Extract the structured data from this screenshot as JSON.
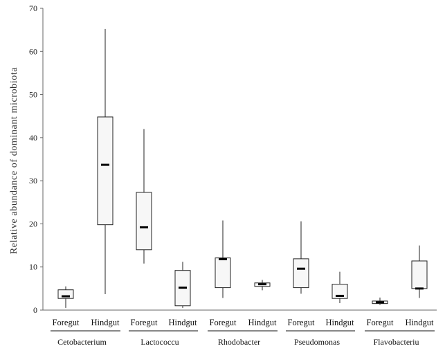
{
  "chart_data": {
    "type": "box",
    "ylabel": "Relative abundance of dominant microbiota",
    "xlabel": "",
    "ylim": [
      0,
      70
    ],
    "yticks": [
      0,
      10,
      20,
      30,
      40,
      50,
      60,
      70
    ],
    "grid": false,
    "groups": [
      {
        "name": "Cetobacterium",
        "boxes": [
          {
            "category": "Foregut",
            "min": 0.5,
            "q1": 2.7,
            "median": 3.2,
            "q3": 4.7,
            "max": 5.5
          },
          {
            "category": "Hindgut",
            "min": 3.7,
            "q1": 19.8,
            "median": 33.7,
            "q3": 44.8,
            "max": 65.2
          }
        ]
      },
      {
        "name": "Lactococcu",
        "boxes": [
          {
            "category": "Foregut",
            "min": 10.8,
            "q1": 14.0,
            "median": 19.2,
            "q3": 27.3,
            "max": 42.0
          },
          {
            "category": "Hindgut",
            "min": 0.5,
            "q1": 1.0,
            "median": 5.2,
            "q3": 9.2,
            "max": 11.2
          }
        ]
      },
      {
        "name": "Rhodobacter",
        "boxes": [
          {
            "category": "Foregut",
            "min": 2.8,
            "q1": 5.2,
            "median": 11.8,
            "q3": 12.1,
            "max": 20.8
          },
          {
            "category": "Hindgut",
            "min": 4.6,
            "q1": 5.5,
            "median": 6.0,
            "q3": 6.3,
            "max": 7.0
          }
        ]
      },
      {
        "name": "Pseudomonas",
        "boxes": [
          {
            "category": "Foregut",
            "min": 3.8,
            "q1": 5.2,
            "median": 9.6,
            "q3": 11.9,
            "max": 20.6
          },
          {
            "category": "Hindgut",
            "min": 1.6,
            "q1": 2.7,
            "median": 3.3,
            "q3": 6.0,
            "max": 8.9
          }
        ]
      },
      {
        "name": "Flavobacteriu",
        "boxes": [
          {
            "category": "Foregut",
            "min": 1.2,
            "q1": 1.5,
            "median": 1.8,
            "q3": 2.1,
            "max": 2.9
          },
          {
            "category": "Hindgut",
            "min": 2.8,
            "q1": 5.0,
            "median": 5.0,
            "q3": 11.4,
            "max": 15.0
          }
        ]
      }
    ]
  }
}
